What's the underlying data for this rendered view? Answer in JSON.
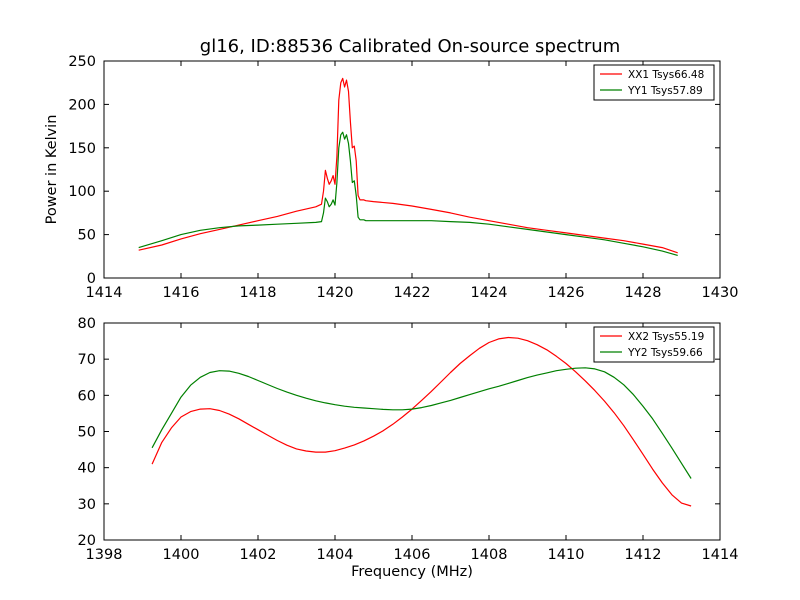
{
  "figure": {
    "title": "gl16, ID:88536 Calibrated On-source spectrum"
  },
  "chart_data": [
    {
      "type": "line",
      "title": "gl16, ID:88536 Calibrated On-source spectrum",
      "xlabel": "",
      "ylabel": "Power in Kelvin",
      "xlim": [
        1414,
        1430
      ],
      "ylim": [
        0,
        250
      ],
      "xticks": [
        1414,
        1416,
        1418,
        1420,
        1422,
        1424,
        1426,
        1428,
        1430
      ],
      "yticks": [
        0,
        50,
        100,
        150,
        200,
        250
      ],
      "grid": false,
      "legend_position": "top-right",
      "series": [
        {
          "name": "XX1 Tsys66.48",
          "color": "#ff0000",
          "x": [
            1414.9,
            1415.5,
            1416.0,
            1416.5,
            1417.0,
            1417.5,
            1418.0,
            1418.5,
            1419.0,
            1419.5,
            1419.65,
            1419.7,
            1419.75,
            1419.8,
            1419.85,
            1419.9,
            1419.95,
            1420.0,
            1420.05,
            1420.1,
            1420.15,
            1420.2,
            1420.25,
            1420.3,
            1420.35,
            1420.4,
            1420.45,
            1420.5,
            1420.55,
            1420.6,
            1420.65,
            1420.7,
            1420.75,
            1420.8,
            1421.0,
            1421.5,
            1422.0,
            1422.5,
            1423.0,
            1423.5,
            1424.0,
            1424.5,
            1425.0,
            1425.5,
            1426.0,
            1426.5,
            1427.0,
            1427.5,
            1428.0,
            1428.5,
            1428.9
          ],
          "y": [
            32,
            38,
            45,
            51,
            56,
            61,
            66,
            71,
            77,
            82,
            85,
            100,
            124,
            115,
            108,
            112,
            118,
            108,
            140,
            205,
            225,
            230,
            220,
            228,
            215,
            180,
            150,
            152,
            135,
            95,
            90,
            90,
            90,
            89,
            88,
            86,
            83,
            79,
            75,
            70,
            66,
            62,
            58,
            55,
            52,
            49,
            46,
            43,
            39,
            35,
            29
          ]
        },
        {
          "name": "YY1 Tsys57.89",
          "color": "#008000",
          "x": [
            1414.9,
            1415.5,
            1416.0,
            1416.5,
            1417.0,
            1417.5,
            1418.0,
            1418.5,
            1419.0,
            1419.5,
            1419.65,
            1419.7,
            1419.75,
            1419.8,
            1419.85,
            1419.9,
            1419.95,
            1420.0,
            1420.05,
            1420.1,
            1420.15,
            1420.2,
            1420.25,
            1420.3,
            1420.35,
            1420.4,
            1420.45,
            1420.5,
            1420.55,
            1420.6,
            1420.65,
            1420.7,
            1420.75,
            1420.8,
            1421.0,
            1421.5,
            1422.0,
            1422.5,
            1423.0,
            1423.5,
            1424.0,
            1424.5,
            1425.0,
            1425.5,
            1426.0,
            1426.5,
            1427.0,
            1427.5,
            1428.0,
            1428.5,
            1428.9
          ],
          "y": [
            35,
            43,
            50,
            55,
            58,
            60,
            61,
            62,
            63,
            64,
            65,
            75,
            92,
            88,
            82,
            85,
            90,
            84,
            110,
            150,
            165,
            168,
            160,
            165,
            155,
            135,
            110,
            112,
            95,
            70,
            67,
            67,
            67,
            66,
            66,
            66,
            66,
            66,
            65,
            64,
            62,
            59,
            56,
            53,
            50,
            47,
            44,
            40,
            36,
            31,
            26
          ]
        }
      ]
    },
    {
      "type": "line",
      "title": "",
      "xlabel": "Frequency (MHz)",
      "ylabel": "",
      "xlim": [
        1398,
        1414
      ],
      "ylim": [
        20,
        80
      ],
      "xticks": [
        1398,
        1400,
        1402,
        1404,
        1406,
        1408,
        1410,
        1412,
        1414
      ],
      "yticks": [
        20,
        30,
        40,
        50,
        60,
        70,
        80
      ],
      "grid": false,
      "legend_position": "top-right",
      "series": [
        {
          "name": "XX2 Tsys55.19",
          "color": "#ff0000",
          "x": [
            1399.25,
            1399.5,
            1399.75,
            1400.0,
            1400.25,
            1400.5,
            1400.75,
            1401.0,
            1401.25,
            1401.5,
            1401.75,
            1402.0,
            1402.25,
            1402.5,
            1402.75,
            1403.0,
            1403.25,
            1403.5,
            1403.75,
            1404.0,
            1404.25,
            1404.5,
            1404.75,
            1405.0,
            1405.25,
            1405.5,
            1405.75,
            1406.0,
            1406.25,
            1406.5,
            1406.75,
            1407.0,
            1407.25,
            1407.5,
            1407.75,
            1408.0,
            1408.25,
            1408.5,
            1408.75,
            1409.0,
            1409.25,
            1409.5,
            1409.75,
            1410.0,
            1410.25,
            1410.5,
            1410.75,
            1411.0,
            1411.25,
            1411.5,
            1411.75,
            1412.0,
            1412.25,
            1412.5,
            1412.75,
            1413.0,
            1413.25
          ],
          "y": [
            41,
            47,
            51,
            54,
            55.5,
            56.2,
            56.3,
            55.8,
            54.8,
            53.5,
            52,
            50.5,
            49,
            47.5,
            46.2,
            45.2,
            44.6,
            44.3,
            44.3,
            44.7,
            45.4,
            46.3,
            47.4,
            48.7,
            50.2,
            52,
            54,
            56.2,
            58.6,
            61.1,
            63.7,
            66.3,
            68.8,
            71,
            73,
            74.6,
            75.6,
            76,
            75.8,
            75.1,
            74,
            72.6,
            70.8,
            68.8,
            66.5,
            64,
            61.3,
            58.4,
            55.2,
            51.6,
            47.7,
            43.7,
            39.6,
            35.8,
            32.5,
            30.2,
            29.4
          ]
        },
        {
          "name": "YY2 Tsys59.66",
          "color": "#008000",
          "x": [
            1399.25,
            1399.5,
            1399.75,
            1400.0,
            1400.25,
            1400.5,
            1400.75,
            1401.0,
            1401.25,
            1401.5,
            1401.75,
            1402.0,
            1402.25,
            1402.5,
            1402.75,
            1403.0,
            1403.25,
            1403.5,
            1403.75,
            1404.0,
            1404.25,
            1404.5,
            1404.75,
            1405.0,
            1405.25,
            1405.5,
            1405.75,
            1406.0,
            1406.25,
            1406.5,
            1406.75,
            1407.0,
            1407.25,
            1407.5,
            1407.75,
            1408.0,
            1408.25,
            1408.5,
            1408.75,
            1409.0,
            1409.25,
            1409.5,
            1409.75,
            1410.0,
            1410.25,
            1410.5,
            1410.75,
            1411.0,
            1411.25,
            1411.5,
            1411.75,
            1412.0,
            1412.25,
            1412.5,
            1412.75,
            1413.0,
            1413.25
          ],
          "y": [
            45.5,
            50.5,
            55,
            59.5,
            62.8,
            65,
            66.3,
            66.8,
            66.7,
            66.1,
            65.2,
            64.1,
            63,
            61.9,
            60.9,
            60,
            59.2,
            58.5,
            57.9,
            57.4,
            57,
            56.7,
            56.5,
            56.3,
            56.1,
            56,
            56,
            56.2,
            56.6,
            57.2,
            57.9,
            58.6,
            59.4,
            60.2,
            61,
            61.8,
            62.5,
            63.3,
            64.1,
            64.9,
            65.6,
            66.2,
            66.8,
            67.2,
            67.5,
            67.6,
            67.3,
            66.5,
            65,
            62.9,
            60.2,
            57,
            53.5,
            49.5,
            45.4,
            41.2,
            37
          ]
        }
      ]
    }
  ]
}
